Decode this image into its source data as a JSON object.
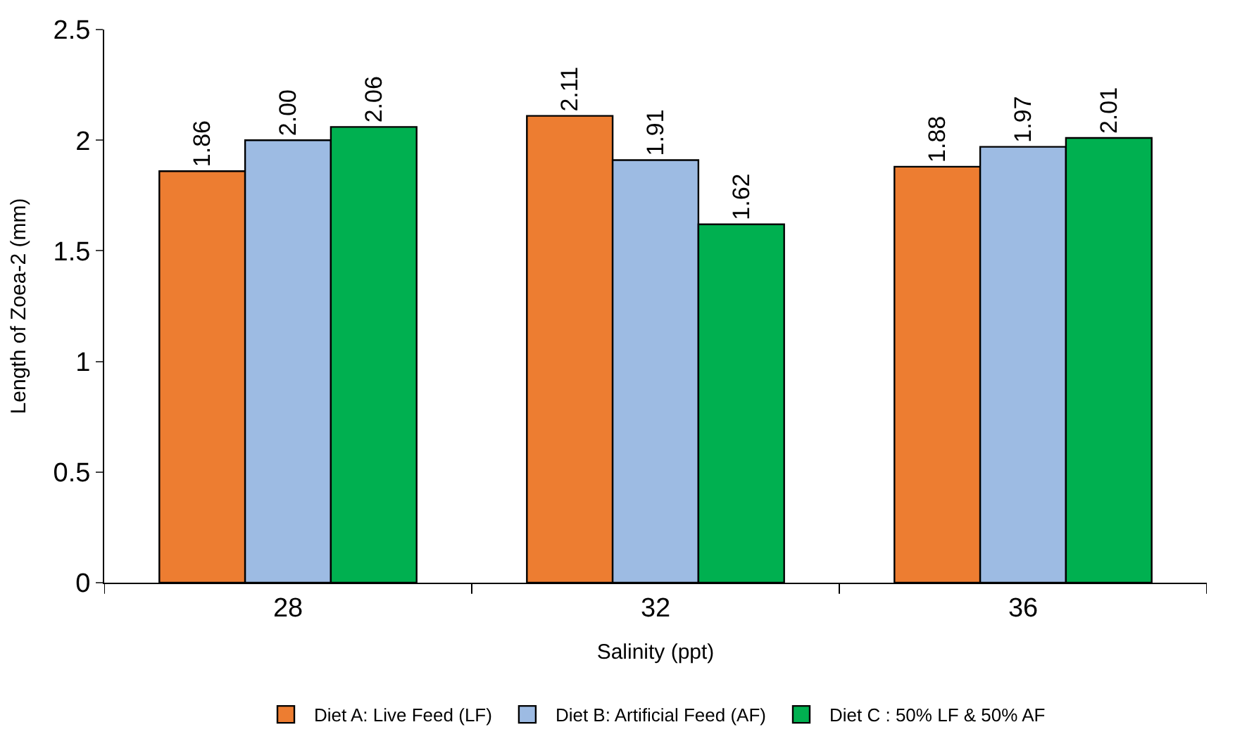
{
  "chart_data": {
    "type": "bar",
    "xlabel": "Salinity (ppt)",
    "ylabel": "Length of Zoea-2 (mm)",
    "categories": [
      "28",
      "32",
      "36"
    ],
    "series": [
      {
        "name": "Diet A: Live Feed (LF)",
        "color": "#ed7d31",
        "values": [
          1.86,
          2.11,
          1.88
        ],
        "value_labels": [
          "1.86",
          "2.11",
          "1.88"
        ]
      },
      {
        "name": "Diet B: Artificial Feed (AF)",
        "color": "#9dbbe3",
        "values": [
          2.0,
          1.91,
          1.97
        ],
        "value_labels": [
          "2.00",
          "1.91",
          "1.97"
        ]
      },
      {
        "name": "Diet C : 50% LF & 50% AF",
        "color": "#00b050",
        "values": [
          2.06,
          1.62,
          2.01
        ],
        "value_labels": [
          "2.06",
          "1.62",
          "2.01"
        ]
      }
    ],
    "ylim": [
      0,
      2.5
    ],
    "yticks": [
      0,
      {
        "value": 0.5,
        "label": "0.5"
      },
      1,
      {
        "value": 1.5,
        "label": "1.5"
      },
      2,
      {
        "value": 2.5,
        "label": "2.5"
      }
    ],
    "legend": "bottom"
  }
}
